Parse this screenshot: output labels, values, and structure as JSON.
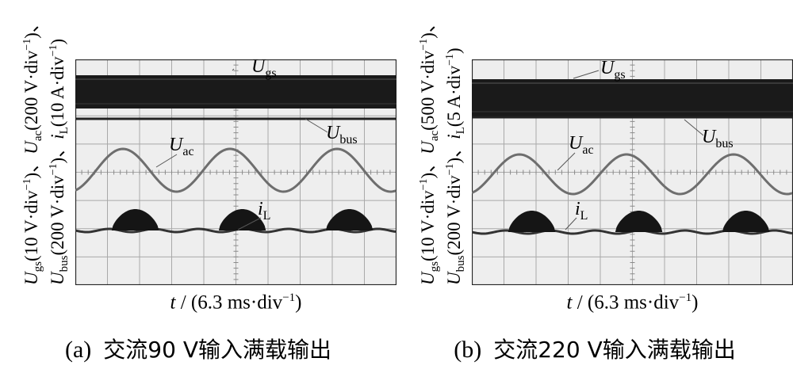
{
  "panels": [
    {
      "id": "a",
      "caption_prefix": "(a)",
      "caption_text": "交流90 V输入满载输出",
      "x_axis": {
        "var": "t",
        "rest": " / (6.3 ms·div",
        "exp": "−1",
        "close": ")"
      },
      "y_axis_line1": [
        {
          "main": "U",
          "sub": "gs",
          "rest": "(10 V·div",
          "exp": "−1",
          "close": ")、"
        },
        {
          "main": "U",
          "sub": "ac",
          "rest": "(200 V·div",
          "exp": "−1",
          "close": ")、"
        }
      ],
      "y_axis_line2": [
        {
          "main": "U",
          "sub": "bus",
          "rest": "(200 V·div",
          "exp": "−1",
          "close": ")、"
        },
        {
          "main": "i",
          "sub": "L",
          "rest": "(10 A·div",
          "exp": "−1",
          "close": ")"
        }
      ],
      "waves": [
        {
          "key": "ugs",
          "main": "U",
          "sub": "gs"
        },
        {
          "key": "ubus",
          "main": "U",
          "sub": "bus"
        },
        {
          "key": "uac",
          "main": "U",
          "sub": "ac"
        },
        {
          "key": "il",
          "main": "i",
          "sub": "L"
        }
      ]
    },
    {
      "id": "b",
      "caption_prefix": "(b)",
      "caption_text": "交流220 V输入满载输出",
      "x_axis": {
        "var": "t",
        "rest": " / (6.3 ms·div",
        "exp": "−1",
        "close": ")"
      },
      "y_axis_line1": [
        {
          "main": "U",
          "sub": "gs",
          "rest": "(10 V·div",
          "exp": "−1",
          "close": ")、"
        },
        {
          "main": "U",
          "sub": "ac",
          "rest": "(500 V·div",
          "exp": "−1",
          "close": ")、"
        }
      ],
      "y_axis_line2": [
        {
          "main": "U",
          "sub": "bus",
          "rest": "(200 V·div",
          "exp": "−1",
          "close": ")、"
        },
        {
          "main": "i",
          "sub": "L",
          "rest": "(5 A·div",
          "exp": "−1",
          "close": ")"
        }
      ],
      "waves": [
        {
          "key": "ugs",
          "main": "U",
          "sub": "gs"
        },
        {
          "key": "ubus",
          "main": "U",
          "sub": "bus"
        },
        {
          "key": "uac",
          "main": "U",
          "sub": "ac"
        },
        {
          "key": "il",
          "main": "i",
          "sub": "L"
        }
      ]
    }
  ],
  "chart_data": [
    {
      "type": "line",
      "panel": "a",
      "xlabel": "t / (6.3 ms·div−1)",
      "ylabel": "Ugs(10 V·div−1)、Uac(200 V·div−1)、Ubus(200 V·div−1)、iL(10 A·div−1)",
      "grid": true,
      "x_divisions": 10,
      "y_divisions": 8,
      "series": [
        {
          "name": "Ugs",
          "kind": "switching-band"
        },
        {
          "name": "Ubus",
          "kind": "dc-level"
        },
        {
          "name": "Uac",
          "kind": "sine",
          "cycles": 3
        },
        {
          "name": "iL",
          "kind": "rectified-pulses",
          "humps": 3
        }
      ]
    },
    {
      "type": "line",
      "panel": "b",
      "xlabel": "t / (6.3 ms·div−1)",
      "ylabel": "Ugs(10 V·div−1)、Uac(500 V·div−1)、Ubus(200 V·div−1)、iL(5 A·div−1)",
      "grid": true,
      "x_divisions": 10,
      "y_divisions": 8,
      "series": [
        {
          "name": "Ugs",
          "kind": "switching-band"
        },
        {
          "name": "Ubus",
          "kind": "dc-level"
        },
        {
          "name": "Uac",
          "kind": "sine",
          "cycles": 3
        },
        {
          "name": "iL",
          "kind": "rectified-pulses",
          "humps": 3
        }
      ]
    }
  ]
}
